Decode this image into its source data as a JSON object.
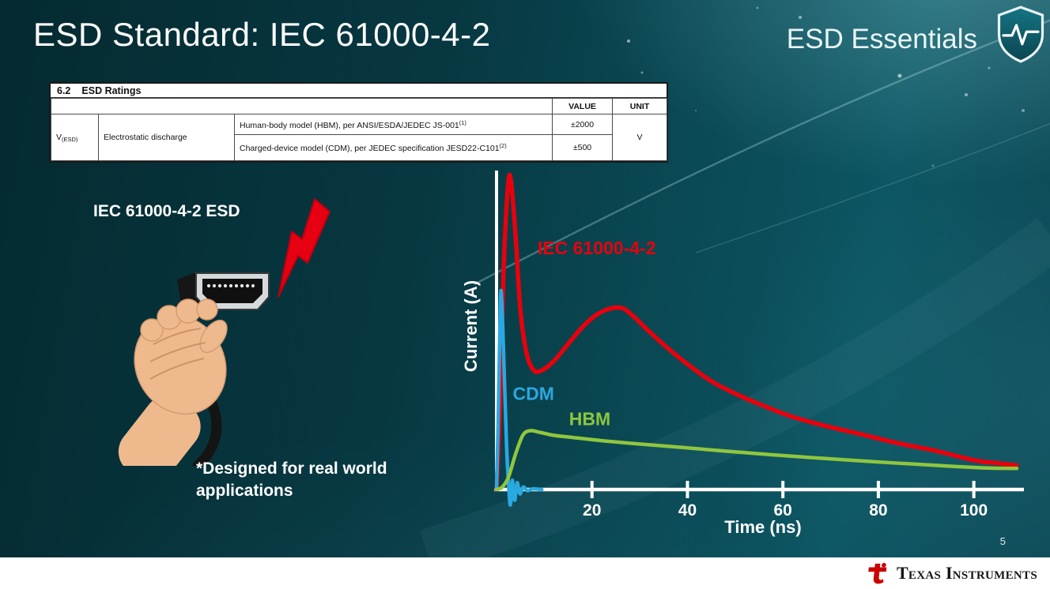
{
  "slide": {
    "title": "ESD Standard: IEC 61000-4-2",
    "series_label": "ESD Essentials",
    "page_number": "5",
    "footer_brand": "Texas Instruments"
  },
  "ratings_table": {
    "section": "6.2",
    "section_title": "ESD Ratings",
    "col_headers": [
      "VALUE",
      "UNIT"
    ],
    "param_symbol": "V",
    "param_symbol_sub": "(ESD)",
    "param_name": "Electrostatic discharge",
    "rows": [
      {
        "desc": "Human-body model (HBM), per ANSI/ESDA/JEDEC JS-001",
        "desc_sup": "(1)",
        "value": "±2000"
      },
      {
        "desc": "Charged-device model (CDM), per JEDEC specification JESD22-C101",
        "desc_sup": "(2)",
        "value": "±500"
      }
    ],
    "unit": "V"
  },
  "left_panel": {
    "caption": "IEC 61000-4-2 ESD",
    "note_line1": "*Designed for real world",
    "note_line2": "applications"
  },
  "colors": {
    "background_teal": "#0a4954",
    "bolt_red": "#e60012",
    "bolt_outline": "#b50010",
    "skin": "#efb98e",
    "skin_shadow": "#cf9368",
    "cable_black": "#141414",
    "ti_red": "#cc0000",
    "footer_white": "#ffffff"
  },
  "chart_data": {
    "type": "line",
    "title": "",
    "xlabel": "Time (ns)",
    "ylabel": "Current (A)",
    "xlim": [
      0,
      110
    ],
    "ylim": [
      0,
      1.01
    ],
    "x_ticks": [
      20,
      40,
      60,
      80,
      100
    ],
    "grid": false,
    "legend_position": "inline-labels",
    "axis_color": "#ffffff",
    "series": [
      {
        "name": "IEC 61000-4-2",
        "color": "#e8000d",
        "width": 5.5,
        "label_at": [
          8.6,
          0.76
        ],
        "points": [
          [
            0,
            0
          ],
          [
            0.7,
            0.25
          ],
          [
            1.5,
            0.72
          ],
          [
            2.4,
            0.98
          ],
          [
            3.0,
            1.0
          ],
          [
            3.9,
            0.84
          ],
          [
            5.0,
            0.58
          ],
          [
            6.3,
            0.44
          ],
          [
            7.8,
            0.385
          ],
          [
            9.5,
            0.385
          ],
          [
            12,
            0.415
          ],
          [
            15,
            0.47
          ],
          [
            18,
            0.525
          ],
          [
            21,
            0.565
          ],
          [
            24,
            0.585
          ],
          [
            26.5,
            0.585
          ],
          [
            29,
            0.555
          ],
          [
            32,
            0.51
          ],
          [
            36,
            0.455
          ],
          [
            40,
            0.405
          ],
          [
            45,
            0.35
          ],
          [
            50,
            0.31
          ],
          [
            56,
            0.27
          ],
          [
            62,
            0.235
          ],
          [
            69,
            0.205
          ],
          [
            76,
            0.18
          ],
          [
            84,
            0.15
          ],
          [
            92,
            0.125
          ],
          [
            100,
            0.095
          ],
          [
            105,
            0.085
          ],
          [
            109,
            0.078
          ]
        ]
      },
      {
        "name": "CDM",
        "color": "#2aa8e0",
        "width": 4.5,
        "label_at": [
          3.4,
          0.29
        ],
        "points": [
          [
            0,
            0
          ],
          [
            0.35,
            0.22
          ],
          [
            0.8,
            0.6
          ],
          [
            1.1,
            0.61
          ],
          [
            1.6,
            0.38
          ],
          [
            2.1,
            0.14
          ],
          [
            2.5,
            0.02
          ],
          [
            2.9,
            -0.05
          ],
          [
            3.3,
            0.03
          ],
          [
            3.8,
            -0.035
          ],
          [
            4.3,
            0.022
          ],
          [
            4.9,
            -0.014
          ],
          [
            5.6,
            0.008
          ],
          [
            6.5,
            -0.004
          ],
          [
            7.5,
            0.002
          ],
          [
            9.5,
            0
          ]
        ]
      },
      {
        "name": "HBM",
        "color": "#8fc63e",
        "width": 4.5,
        "label_at": [
          15.2,
          0.208
        ],
        "points": [
          [
            0,
            0
          ],
          [
            1.2,
            0.008
          ],
          [
            2.5,
            0.04
          ],
          [
            4,
            0.115
          ],
          [
            5.5,
            0.175
          ],
          [
            7,
            0.19
          ],
          [
            9,
            0.185
          ],
          [
            12,
            0.175
          ],
          [
            16,
            0.168
          ],
          [
            22,
            0.158
          ],
          [
            30,
            0.147
          ],
          [
            38,
            0.137
          ],
          [
            48,
            0.124
          ],
          [
            58,
            0.112
          ],
          [
            68,
            0.101
          ],
          [
            80,
            0.089
          ],
          [
            92,
            0.078
          ],
          [
            102,
            0.07
          ],
          [
            109,
            0.068
          ]
        ]
      }
    ]
  }
}
